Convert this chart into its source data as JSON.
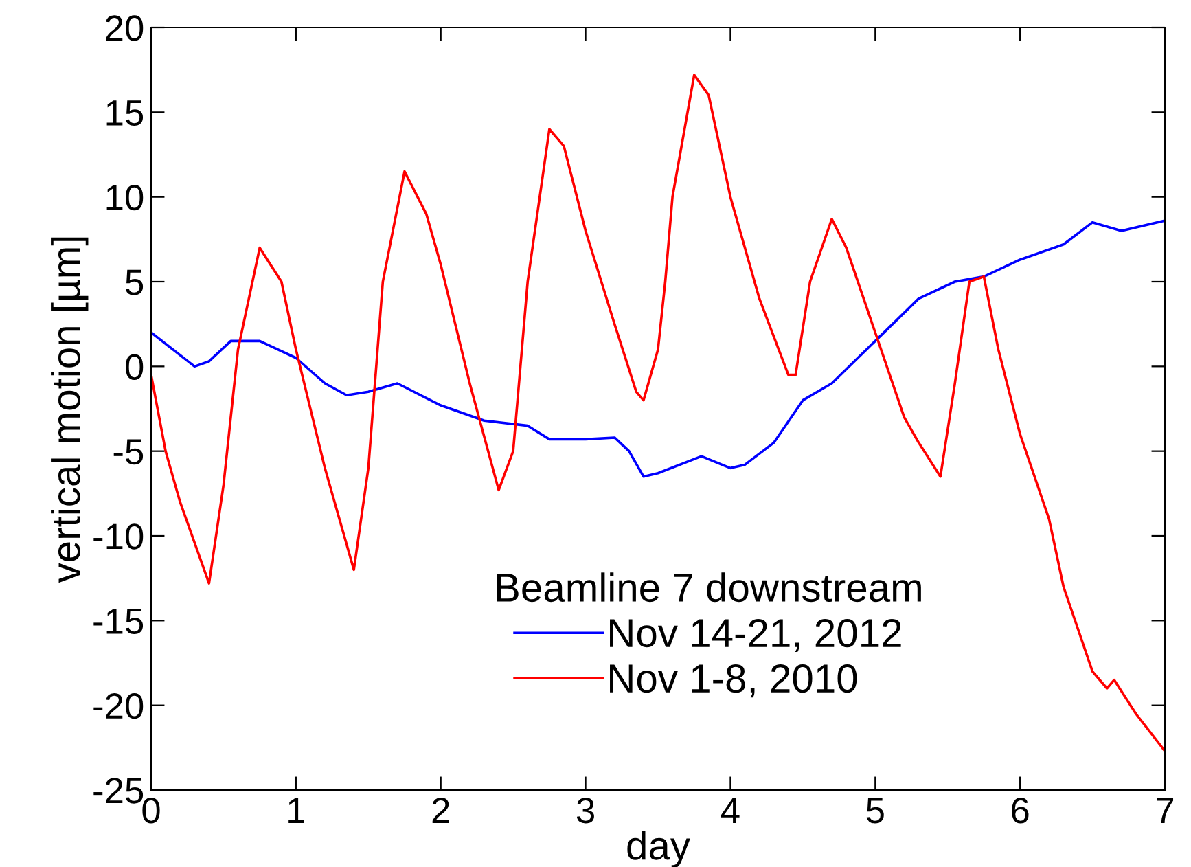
{
  "chart_data": {
    "type": "line",
    "xlabel": "day",
    "ylabel": "vertical motion [µm]",
    "legend_title": "Beamline 7 downstream",
    "legend": "bottom",
    "grid": false,
    "xlim": [
      0,
      7
    ],
    "ylim": [
      -25,
      20
    ],
    "xticks": [
      0,
      1,
      2,
      3,
      4,
      5,
      6,
      7
    ],
    "yticks": [
      -25,
      -20,
      -15,
      -10,
      -5,
      0,
      5,
      10,
      15,
      20
    ],
    "series": [
      {
        "name": "Nov 14-21, 2012",
        "color": "#0000ff",
        "x": [
          0,
          0.3,
          0.4,
          0.55,
          0.75,
          1.0,
          1.2,
          1.35,
          1.5,
          1.7,
          2.0,
          2.3,
          2.6,
          2.75,
          3.0,
          3.2,
          3.3,
          3.4,
          3.5,
          3.8,
          4.0,
          4.1,
          4.3,
          4.5,
          4.7,
          5.0,
          5.3,
          5.55,
          5.75,
          6.0,
          6.3,
          6.5,
          6.7,
          7.0
        ],
        "values": [
          2,
          0,
          0.3,
          1.5,
          1.5,
          0.5,
          -1,
          -1.7,
          -1.5,
          -1,
          -2.3,
          -3.2,
          -3.5,
          -4.3,
          -4.3,
          -4.2,
          -5,
          -6.5,
          -6.3,
          -5.3,
          -6,
          -5.8,
          -4.5,
          -2,
          -1,
          1.5,
          4,
          5,
          5.3,
          6.3,
          7.2,
          8.5,
          8,
          8.6
        ]
      },
      {
        "name": "Nov 1-8, 2010",
        "color": "#ff0000",
        "x": [
          0,
          0.1,
          0.2,
          0.4,
          0.5,
          0.6,
          0.75,
          0.9,
          1.0,
          1.2,
          1.4,
          1.5,
          1.6,
          1.75,
          1.9,
          2.0,
          2.2,
          2.4,
          2.5,
          2.6,
          2.75,
          2.85,
          3.0,
          3.2,
          3.35,
          3.4,
          3.5,
          3.55,
          3.6,
          3.75,
          3.85,
          4.0,
          4.2,
          4.4,
          4.45,
          4.55,
          4.7,
          4.8,
          5.0,
          5.2,
          5.3,
          5.45,
          5.55,
          5.65,
          5.75,
          5.85,
          6.0,
          6.1,
          6.2,
          6.3,
          6.5,
          6.6,
          6.65,
          6.8,
          7.0
        ],
        "values": [
          -0.5,
          -5,
          -8,
          -12.8,
          -7,
          1,
          7,
          5,
          1,
          -6,
          -12,
          -6,
          5,
          11.5,
          9,
          6,
          -1,
          -7.3,
          -5,
          5,
          14,
          13,
          8,
          2.5,
          -1.5,
          -2,
          1,
          5,
          10,
          17.2,
          16,
          10,
          4,
          -0.5,
          -0.5,
          5,
          8.7,
          7,
          2,
          -3,
          -4.5,
          -6.5,
          -1,
          5,
          5.3,
          1,
          -4,
          -6.5,
          -9,
          -13,
          -18,
          -19,
          -18.5,
          -20.5,
          -22.7
        ]
      }
    ]
  }
}
